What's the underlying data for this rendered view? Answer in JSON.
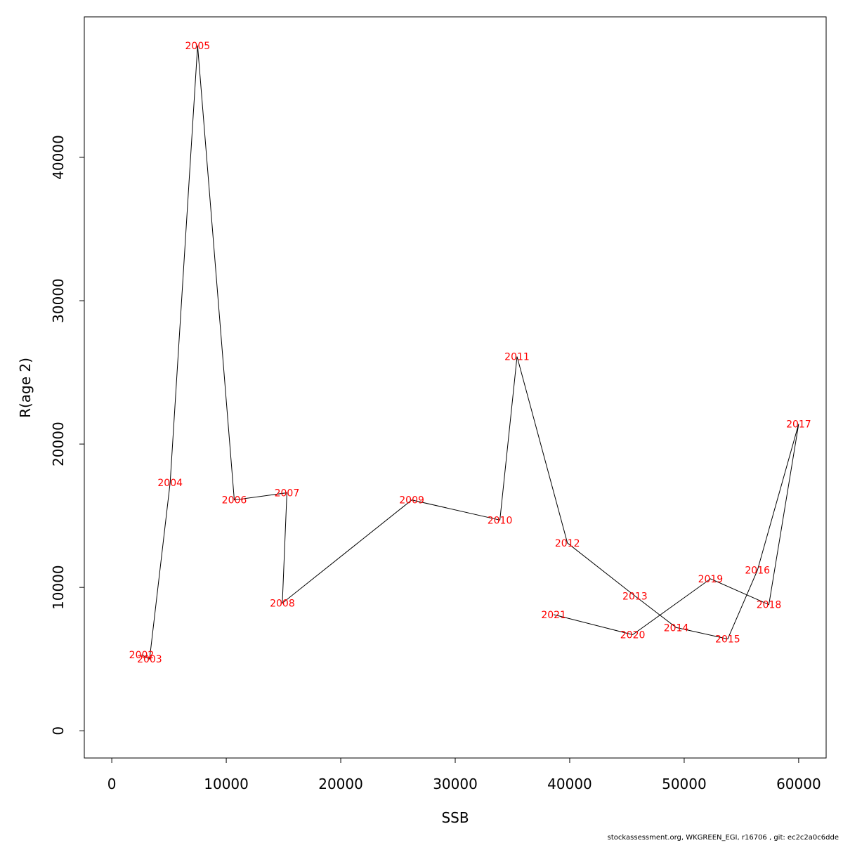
{
  "footer": "stockassessment.org, WKGREEN_EGI, r16706 , git: ec2c2a0c6dde",
  "chart_data": {
    "type": "line",
    "title": "",
    "xlabel": "SSB",
    "ylabel": "R(age 2)",
    "xlim": [
      -2400,
      62400
    ],
    "ylim": [
      -1900,
      49800
    ],
    "xticks": [
      0,
      10000,
      20000,
      30000,
      40000,
      50000,
      60000
    ],
    "yticks": [
      0,
      10000,
      20000,
      30000,
      40000
    ],
    "grid": false,
    "legend": "none",
    "line_color": "#000000",
    "label_color": "#ff0000",
    "points": [
      {
        "label": "2002",
        "x": 2600,
        "y": 5300
      },
      {
        "label": "2003",
        "x": 3300,
        "y": 5000
      },
      {
        "label": "2004",
        "x": 5100,
        "y": 17300
      },
      {
        "label": "2005",
        "x": 7500,
        "y": 47800
      },
      {
        "label": "2006",
        "x": 10700,
        "y": 16100
      },
      {
        "label": "2007",
        "x": 15300,
        "y": 16600
      },
      {
        "label": "2008",
        "x": 14900,
        "y": 8900
      },
      {
        "label": "2009",
        "x": 26200,
        "y": 16100
      },
      {
        "label": "2010",
        "x": 33900,
        "y": 14700
      },
      {
        "label": "2011",
        "x": 35400,
        "y": 26100
      },
      {
        "label": "2012",
        "x": 39800,
        "y": 13100
      },
      {
        "label": "2013",
        "x": 45700,
        "y": 9400
      },
      {
        "label": "2014",
        "x": 49300,
        "y": 7200
      },
      {
        "label": "2015",
        "x": 53800,
        "y": 6400
      },
      {
        "label": "2016",
        "x": 56400,
        "y": 11200
      },
      {
        "label": "2017",
        "x": 60000,
        "y": 21400
      },
      {
        "label": "2018",
        "x": 57400,
        "y": 8800
      },
      {
        "label": "2019",
        "x": 52300,
        "y": 10600
      },
      {
        "label": "2020",
        "x": 45500,
        "y": 6700
      },
      {
        "label": "2021",
        "x": 38600,
        "y": 8100
      }
    ]
  }
}
